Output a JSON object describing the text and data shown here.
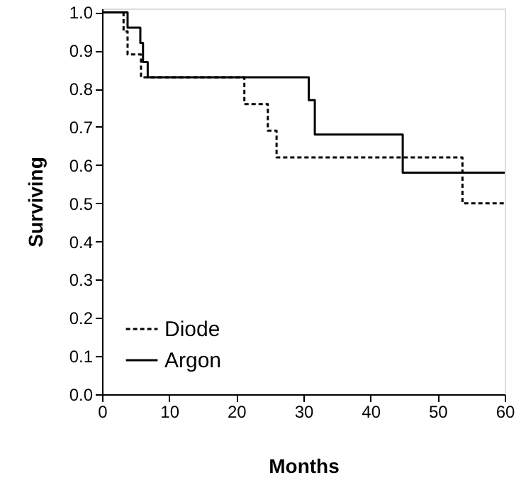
{
  "chart_data": {
    "type": "step",
    "xlabel": "Months",
    "ylabel": "Surviving",
    "xlim": [
      0,
      60
    ],
    "xticks": [
      0,
      10,
      20,
      30,
      40,
      50,
      60
    ],
    "ylim": [
      0,
      1.01
    ],
    "yticks": [
      {
        "value": 0,
        "label": "0.0"
      },
      0.1,
      0.2,
      0.3,
      0.4,
      0.5,
      0.6,
      0.7,
      0.8,
      0.9,
      {
        "value": 1,
        "label": "1.0"
      }
    ],
    "grid": false,
    "legend": "bottom left",
    "series": [
      {
        "name": "Diode",
        "color": "#000000",
        "line_style": "dashed",
        "x": [
          0,
          3.2,
          3.8,
          5.8,
          21.2,
          24.7,
          26.0,
          53.7,
          60
        ],
        "values": [
          1.0,
          0.95,
          0.89,
          0.83,
          0.76,
          0.69,
          0.62,
          0.5,
          0.5
        ]
      },
      {
        "name": "Argon",
        "color": "#000000",
        "line_style": "solid",
        "x": [
          0,
          3.8,
          5.7,
          6.1,
          6.8,
          30.8,
          31.7,
          44.8,
          60
        ],
        "values": [
          1.0,
          0.96,
          0.92,
          0.87,
          0.83,
          0.77,
          0.68,
          0.58,
          0.58
        ]
      }
    ]
  }
}
